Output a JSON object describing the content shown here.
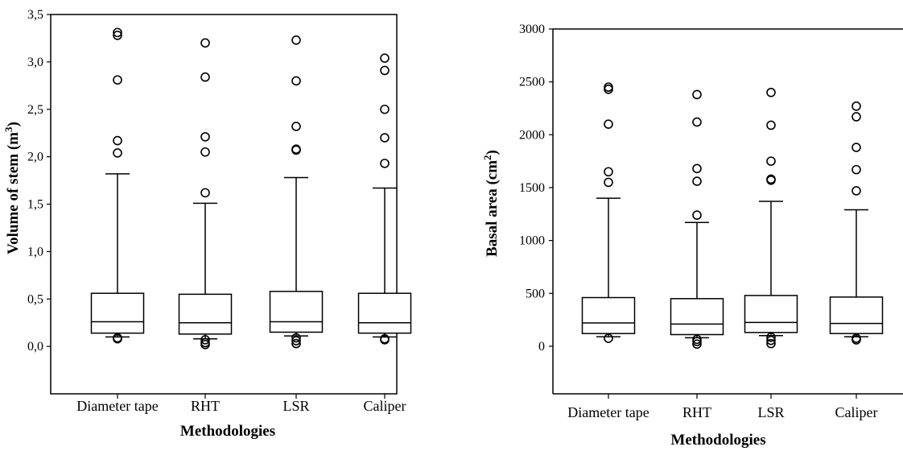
{
  "chart_data": [
    {
      "type": "box",
      "categories": [
        "Diameter tape",
        "RHT",
        "LSR",
        "Caliper"
      ],
      "xlabel": "Methodologies",
      "ylabel_main": "Volume of stem (m",
      "ylabel_sup": "3",
      "ylabel_end": ")",
      "ylim": [
        -0.5,
        3.5
      ],
      "yticks": [
        0.0,
        0.5,
        1.0,
        1.5,
        2.0,
        2.5,
        3.0,
        3.5
      ],
      "ytick_labels": [
        "0,0",
        "0,5",
        "1,0",
        "1,5",
        "2,0",
        "2,5",
        "3,0",
        "3,5"
      ],
      "series": [
        {
          "whisker_low": 0.1,
          "q1": 0.14,
          "median": 0.26,
          "q3": 0.56,
          "whisker_high": 1.82,
          "outliers": [
            0.08,
            0.09,
            2.04,
            2.17,
            2.81,
            3.28,
            3.31
          ]
        },
        {
          "whisker_low": 0.08,
          "q1": 0.13,
          "median": 0.25,
          "q3": 0.55,
          "whisker_high": 1.51,
          "outliers": [
            0.02,
            0.04,
            0.07,
            1.62,
            2.05,
            2.21,
            2.84,
            3.2
          ]
        },
        {
          "whisker_low": 0.11,
          "q1": 0.15,
          "median": 0.26,
          "q3": 0.58,
          "whisker_high": 1.78,
          "outliers": [
            0.03,
            0.06,
            0.09,
            2.07,
            2.08,
            2.32,
            2.8,
            3.23
          ]
        },
        {
          "whisker_low": 0.1,
          "q1": 0.14,
          "median": 0.25,
          "q3": 0.56,
          "whisker_high": 1.67,
          "outliers": [
            0.07,
            0.08,
            1.93,
            2.2,
            2.5,
            2.91,
            3.04
          ]
        }
      ]
    },
    {
      "type": "box",
      "categories": [
        "Diameter tape",
        "RHT",
        "LSR",
        "Caliper"
      ],
      "xlabel": "Methodologies",
      "ylabel_main": "Basal area (cm",
      "ylabel_sup": "2",
      "ylabel_end": ")",
      "ylim": [
        -450,
        3000
      ],
      "yticks": [
        0,
        500,
        1000,
        1500,
        2000,
        2500,
        3000
      ],
      "ytick_labels": [
        "0",
        "500",
        "1000",
        "1500",
        "2000",
        "2500",
        "3000"
      ],
      "series": [
        {
          "whisker_low": 90,
          "q1": 120,
          "median": 220,
          "q3": 460,
          "whisker_high": 1400,
          "outliers": [
            75,
            1550,
            1650,
            2100,
            2430,
            2450
          ]
        },
        {
          "whisker_low": 80,
          "q1": 110,
          "median": 210,
          "q3": 450,
          "whisker_high": 1170,
          "outliers": [
            20,
            45,
            65,
            1240,
            1560,
            1680,
            2120,
            2380
          ]
        },
        {
          "whisker_low": 100,
          "q1": 130,
          "median": 225,
          "q3": 480,
          "whisker_high": 1370,
          "outliers": [
            25,
            55,
            85,
            1570,
            1580,
            1750,
            2090,
            2400
          ]
        },
        {
          "whisker_low": 90,
          "q1": 120,
          "median": 215,
          "q3": 465,
          "whisker_high": 1290,
          "outliers": [
            60,
            75,
            1470,
            1670,
            1880,
            2170,
            2270
          ]
        }
      ]
    }
  ]
}
